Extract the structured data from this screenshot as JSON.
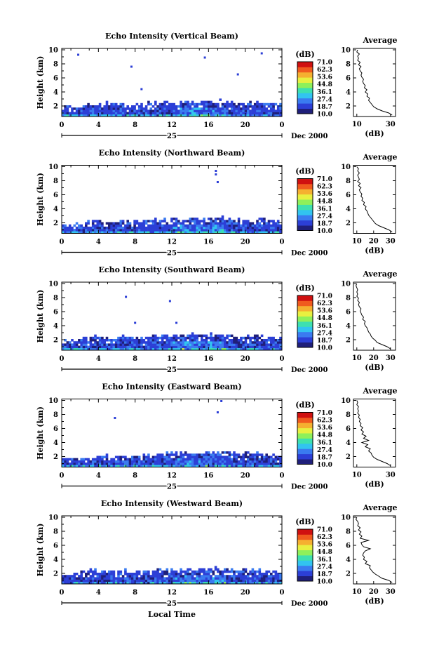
{
  "figure": {
    "xlabel": "Local Time",
    "date_label": "Dec 2000",
    "day_label": "25",
    "colorbar_unit": "(dB)",
    "colorbar_ticks": [
      "71.0",
      "62.3",
      "53.6",
      "44.8",
      "36.1",
      "27.4",
      "18.7",
      "10.0"
    ],
    "colormap": [
      "#1f1f7a",
      "#2c3fd6",
      "#3a7bf0",
      "#32c4f0",
      "#3de0b0",
      "#8ef05a",
      "#e8f040",
      "#f5b030",
      "#f05a1e",
      "#d01010"
    ]
  },
  "chart_data": [
    {
      "type": "heatmap",
      "title": "Echo Intensity (Vertical Beam)",
      "ylabel": "Height (km)",
      "xticks": [
        "0",
        "4",
        "8",
        "12",
        "16",
        "20",
        "0"
      ],
      "yticks": [
        "2",
        "4",
        "6",
        "8",
        "10"
      ],
      "xlim": [
        0,
        24
      ],
      "ylim": [
        0.5,
        10.2
      ],
      "layer_top_km": [
        2.0,
        1.9,
        2.2,
        2.4,
        2.8,
        2.6,
        2.4,
        2.3,
        2.5,
        2.6,
        2.7,
        2.8,
        2.6,
        2.7,
        2.8,
        2.9,
        2.8,
        2.9,
        2.8,
        2.7,
        2.6,
        2.7,
        2.6,
        2.5
      ],
      "echo_range_db": [
        10,
        40
      ],
      "isolated_echoes": [
        {
          "x": 1.8,
          "y": 9.3
        },
        {
          "x": 7.6,
          "y": 7.6
        },
        {
          "x": 8.7,
          "y": 4.4
        },
        {
          "x": 15.6,
          "y": 8.9
        },
        {
          "x": 19.2,
          "y": 6.5
        },
        {
          "x": 21.8,
          "y": 9.5
        }
      ],
      "profile": {
        "title": "Average",
        "xlabel": "(dB)",
        "xticks": [
          "10",
          "30"
        ],
        "xlim": [
          8,
          33
        ],
        "yticks": [
          "2",
          "4",
          "6",
          "8",
          "10"
        ],
        "heights": [
          0.7,
          1.0,
          1.3,
          1.6,
          1.9,
          2.2,
          2.5,
          2.8,
          3.1,
          3.4,
          3.7,
          4.0,
          4.3,
          4.6,
          4.9,
          5.2,
          5.5,
          5.8,
          6.1,
          6.4,
          6.7,
          7.0,
          7.3,
          7.6,
          7.9,
          8.2,
          8.5,
          8.8,
          9.1,
          9.4,
          9.7,
          10.0
        ],
        "values": [
          31,
          29,
          25,
          22,
          20,
          19,
          18,
          17,
          17.5,
          16,
          16.5,
          15,
          16,
          14.5,
          15,
          14,
          13.5,
          14,
          13,
          12.5,
          13,
          12,
          11.5,
          12.5,
          11,
          12,
          10.5,
          11,
          10.5,
          11.5,
          10,
          10.5
        ]
      }
    },
    {
      "type": "heatmap",
      "title": "Echo Intensity (Northward Beam)",
      "ylabel": "Height (km)",
      "xticks": [
        "0",
        "4",
        "8",
        "12",
        "16",
        "20",
        "0"
      ],
      "yticks": [
        "2",
        "4",
        "6",
        "8",
        "10"
      ],
      "xlim": [
        0,
        24
      ],
      "ylim": [
        0.5,
        10.2
      ],
      "layer_top_km": [
        2.1,
        2.0,
        2.3,
        2.5,
        2.6,
        2.4,
        2.5,
        2.4,
        2.5,
        2.6,
        2.7,
        2.8,
        2.7,
        2.8,
        2.9,
        2.9,
        3.0,
        2.9,
        2.8,
        2.7,
        2.6,
        2.7,
        2.6,
        2.5
      ],
      "echo_range_db": [
        10,
        40
      ],
      "isolated_echoes": [
        {
          "x": 16.8,
          "y": 9.4
        },
        {
          "x": 16.8,
          "y": 8.9
        },
        {
          "x": 17.0,
          "y": 7.8
        }
      ],
      "profile": {
        "title": "Average",
        "xlabel": "(dB)",
        "xticks": [
          "10",
          "20",
          "30"
        ],
        "xlim": [
          8,
          33
        ],
        "yticks": [
          "2",
          "4",
          "6",
          "8",
          "10"
        ],
        "heights": [
          0.7,
          1.0,
          1.3,
          1.6,
          1.9,
          2.2,
          2.5,
          2.8,
          3.1,
          3.4,
          3.7,
          4.0,
          4.3,
          4.6,
          4.9,
          5.2,
          5.5,
          5.8,
          6.1,
          6.4,
          6.7,
          7.0,
          7.3,
          7.6,
          7.9,
          8.2,
          8.5,
          8.8,
          9.1,
          9.4,
          9.7,
          10.0
        ],
        "values": [
          31,
          29,
          26,
          23,
          21,
          20,
          19,
          18,
          17,
          16.5,
          16,
          15,
          15.5,
          14,
          14.5,
          13,
          13.5,
          12.5,
          13,
          12,
          11.5,
          12.5,
          11,
          12,
          10.5,
          11.5,
          11,
          10.5,
          11.5,
          10.5,
          11,
          10
        ]
      }
    },
    {
      "type": "heatmap",
      "title": "Echo Intensity (Southward Beam)",
      "ylabel": "Height (km)",
      "xticks": [
        "0",
        "4",
        "8",
        "12",
        "16",
        "20",
        "0"
      ],
      "yticks": [
        "2",
        "4",
        "6",
        "8",
        "10"
      ],
      "xlim": [
        0,
        24
      ],
      "ylim": [
        0.5,
        10.2
      ],
      "layer_top_km": [
        2.0,
        2.1,
        2.4,
        2.7,
        2.5,
        2.4,
        2.6,
        2.5,
        2.4,
        2.6,
        2.7,
        2.8,
        2.7,
        2.8,
        2.9,
        3.0,
        2.9,
        2.8,
        2.8,
        2.7,
        2.6,
        2.7,
        2.6,
        2.5
      ],
      "echo_range_db": [
        10,
        40
      ],
      "isolated_echoes": [
        {
          "x": 7.0,
          "y": 8.1
        },
        {
          "x": 11.8,
          "y": 7.5
        },
        {
          "x": 8.0,
          "y": 4.4
        },
        {
          "x": 12.5,
          "y": 4.4
        }
      ],
      "profile": {
        "title": "Average",
        "xlabel": "(dB)",
        "xticks": [
          "10",
          "20",
          "30"
        ],
        "xlim": [
          8,
          33
        ],
        "yticks": [
          "2",
          "4",
          "6",
          "8",
          "10"
        ],
        "heights": [
          0.7,
          1.0,
          1.3,
          1.6,
          1.9,
          2.2,
          2.5,
          2.8,
          3.1,
          3.4,
          3.7,
          4.0,
          4.3,
          4.6,
          4.9,
          5.2,
          5.5,
          5.8,
          6.1,
          6.4,
          6.7,
          7.0,
          7.3,
          7.6,
          7.9,
          8.2,
          8.5,
          8.8,
          9.1,
          9.4,
          9.7,
          10.0
        ],
        "values": [
          30,
          28,
          25,
          22,
          21,
          19.5,
          18.5,
          18,
          17,
          16.5,
          16,
          15,
          14.5,
          15,
          13.5,
          14,
          13,
          12.5,
          12,
          12.5,
          11.5,
          11,
          11.5,
          10.5,
          11,
          10,
          10.5,
          10,
          10.5,
          10,
          9.5,
          10
        ]
      }
    },
    {
      "type": "heatmap",
      "title": "Echo Intensity (Eastward Beam)",
      "ylabel": "Height (km)",
      "xticks": [
        "0",
        "4",
        "8",
        "12",
        "16",
        "20",
        "0"
      ],
      "yticks": [
        "2",
        "4",
        "6",
        "8",
        "10"
      ],
      "xlim": [
        0,
        24
      ],
      "ylim": [
        0.5,
        10.2
      ],
      "layer_top_km": [
        2.0,
        1.9,
        2.1,
        2.2,
        2.4,
        2.3,
        2.2,
        2.3,
        2.4,
        2.5,
        2.6,
        2.7,
        2.6,
        2.7,
        2.8,
        2.8,
        2.9,
        2.8,
        2.7,
        2.6,
        2.6,
        2.7,
        2.5,
        2.4
      ],
      "echo_range_db": [
        10,
        40
      ],
      "isolated_echoes": [
        {
          "x": 5.8,
          "y": 7.5
        },
        {
          "x": 17.0,
          "y": 8.3
        },
        {
          "x": 17.4,
          "y": 9.9
        }
      ],
      "profile": {
        "title": "Average",
        "xlabel": "(dB)",
        "xticks": [
          "10",
          "30"
        ],
        "xlim": [
          8,
          33
        ],
        "yticks": [
          "2",
          "4",
          "6",
          "8",
          "10"
        ],
        "heights": [
          0.7,
          1.0,
          1.3,
          1.6,
          1.9,
          2.2,
          2.5,
          2.8,
          3.1,
          3.4,
          3.7,
          4.0,
          4.3,
          4.6,
          4.9,
          5.2,
          5.5,
          5.8,
          6.1,
          6.4,
          6.7,
          7.0,
          7.3,
          7.6,
          7.9,
          8.2,
          8.5,
          8.8,
          9.1,
          9.4,
          9.7,
          10.0
        ],
        "values": [
          30,
          28,
          25,
          22,
          20,
          19,
          18.5,
          17,
          18,
          15,
          16.5,
          13,
          17,
          14,
          15.5,
          13,
          14,
          12.5,
          13.5,
          12,
          12.5,
          11.5,
          12,
          11,
          11.5,
          10.5,
          11,
          10.5,
          11,
          10,
          10.5,
          10
        ]
      }
    },
    {
      "type": "heatmap",
      "title": "Echo Intensity (Westward Beam)",
      "ylabel": "Height (km)",
      "xticks": [
        "0",
        "4",
        "8",
        "12",
        "16",
        "20",
        "0"
      ],
      "yticks": [
        "2",
        "4",
        "6",
        "8",
        "10"
      ],
      "xlim": [
        0,
        24
      ],
      "ylim": [
        0.5,
        10.2
      ],
      "layer_top_km": [
        2.0,
        2.2,
        2.4,
        2.6,
        2.5,
        2.4,
        2.5,
        2.4,
        2.5,
        2.6,
        2.7,
        2.8,
        2.6,
        2.7,
        2.8,
        2.9,
        2.9,
        2.8,
        2.7,
        2.8,
        2.7,
        2.6,
        2.6,
        2.5
      ],
      "echo_range_db": [
        10,
        40
      ],
      "isolated_echoes": [],
      "profile": {
        "title": "Average",
        "xlabel": "(dB)",
        "xticks": [
          "10",
          "20",
          "30"
        ],
        "xlim": [
          8,
          33
        ],
        "yticks": [
          "2",
          "4",
          "6",
          "8",
          "10"
        ],
        "heights": [
          0.7,
          1.0,
          1.3,
          1.6,
          1.9,
          2.2,
          2.5,
          2.8,
          3.1,
          3.4,
          3.7,
          4.0,
          4.3,
          4.6,
          4.9,
          5.2,
          5.5,
          5.8,
          6.1,
          6.4,
          6.7,
          7.0,
          7.3,
          7.6,
          7.9,
          8.2,
          8.5,
          8.8,
          9.1,
          9.4,
          9.7,
          10.0
        ],
        "values": [
          31,
          29,
          25,
          23,
          21,
          19.5,
          18.5,
          17.5,
          18,
          15,
          16,
          14,
          14.5,
          13.5,
          14,
          15,
          18,
          14,
          13,
          12.5,
          17,
          12,
          13,
          11.5,
          12.5,
          11,
          12,
          10.5,
          11,
          10.5,
          9.5,
          10
        ]
      }
    }
  ]
}
